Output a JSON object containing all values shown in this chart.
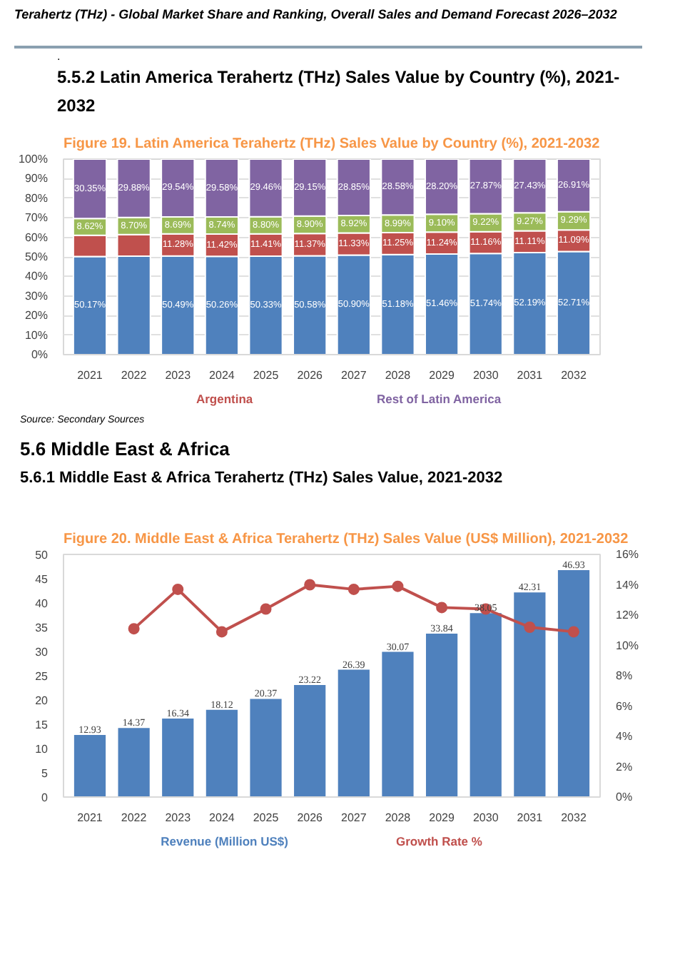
{
  "chart_data": [
    {
      "type": "bar",
      "stacked": true,
      "title": "Figure 19.   Latin America Terahertz (THz) Sales Value by Country (%), 2021-2032",
      "annotations": [
        "Terahertz (THz) - Global Market Share and Ranking, Overall Sales and Demand Forecast 2026–2032",
        ".",
        "5.5.2  Latin America Terahertz (THz) Sales Value by Country (%), 2021-2032",
        "Source: Secondary Sources"
      ],
      "categories": [
        "2021",
        "2022",
        "2023",
        "2024",
        "2025",
        "2026",
        "2027",
        "2028",
        "2029",
        "2030",
        "2031",
        "2032"
      ],
      "ylim": [
        0,
        100
      ],
      "yticks": [
        {
          "value": 0,
          "label": "0%"
        },
        {
          "value": 10,
          "label": "10%"
        },
        {
          "value": 20,
          "label": "20%"
        },
        {
          "value": 30,
          "label": "30%"
        },
        {
          "value": 40,
          "label": "40%"
        },
        {
          "value": 50,
          "label": "50%"
        },
        {
          "value": 60,
          "label": "60%"
        },
        {
          "value": 70,
          "label": "70%"
        },
        {
          "value": 80,
          "label": "80%"
        },
        {
          "value": 90,
          "label": "90%"
        },
        {
          "value": 100,
          "label": "100%"
        }
      ],
      "grid": "y",
      "legend": "bottom",
      "series": [
        {
          "color": "#4f81bd",
          "values": [
            50.17,
            50.33,
            50.49,
            50.26,
            50.33,
            50.58,
            50.9,
            51.18,
            51.46,
            51.74,
            52.19,
            52.71
          ],
          "value_labels": [
            "50.17%",
            null,
            "50.49%",
            "50.26%",
            "50.33%",
            "50.58%",
            "50.90%",
            "51.18%",
            "51.46%",
            "51.74%",
            "52.19%",
            "52.71%"
          ]
        },
        {
          "name": "Argentina",
          "color": "#c0504d",
          "values": [
            10.86,
            11.09,
            11.28,
            11.42,
            11.41,
            11.37,
            11.33,
            11.25,
            11.24,
            11.16,
            11.11,
            11.09
          ],
          "value_labels": [
            null,
            null,
            "11.28%",
            "11.42%",
            "11.41%",
            "11.37%",
            "11.33%",
            "11.25%",
            "11.24%",
            "11.16%",
            "11.11%",
            "11.09%"
          ]
        },
        {
          "color": "#9bbb59",
          "values": [
            8.62,
            8.7,
            8.69,
            8.74,
            8.8,
            8.9,
            8.92,
            8.99,
            9.1,
            9.22,
            9.27,
            9.29
          ],
          "value_labels": [
            "8.62%",
            "8.70%",
            "8.69%",
            "8.74%",
            "8.80%",
            "8.90%",
            "8.92%",
            "8.99%",
            "9.10%",
            "9.22%",
            "9.27%",
            "9.29%"
          ]
        },
        {
          "name": "Rest of Latin America",
          "color": "#8064a2",
          "values": [
            30.35,
            29.88,
            29.54,
            29.58,
            29.46,
            29.15,
            28.85,
            28.58,
            28.2,
            27.87,
            27.43,
            26.91
          ],
          "value_labels": [
            "30.35%",
            "29.88%",
            "29.54%",
            "29.58%",
            "29.46%",
            "29.15%",
            "28.85%",
            "28.58%",
            "28.20%",
            "27.87%",
            "27.43%",
            "26.91%"
          ]
        }
      ]
    },
    {
      "type": "bar",
      "title": "Figure 20.   Middle East & Africa Terahertz (THz) Sales Value (US$ Million), 2021-2032",
      "annotations": [
        "5.6  Middle East & Africa",
        "5.6.1  Middle East & Africa Terahertz (THz) Sales Value, 2021-2032"
      ],
      "categories": [
        "2021",
        "2022",
        "2023",
        "2024",
        "2025",
        "2026",
        "2027",
        "2028",
        "2029",
        "2030",
        "2031",
        "2032"
      ],
      "ylim": [
        0,
        50
      ],
      "yticks": [
        0,
        5,
        10,
        15,
        20,
        25,
        30,
        35,
        40,
        45,
        50
      ],
      "y2lim": [
        0,
        16
      ],
      "y2ticks": [
        {
          "value": 0,
          "label": "0%"
        },
        {
          "value": 2,
          "label": "2%"
        },
        {
          "value": 4,
          "label": "4%"
        },
        {
          "value": 6,
          "label": "6%"
        },
        {
          "value": 8,
          "label": "8%"
        },
        {
          "value": 10,
          "label": "10%"
        },
        {
          "value": 12,
          "label": "12%"
        },
        {
          "value": 14,
          "label": "14%"
        },
        {
          "value": 16,
          "label": "16%"
        }
      ],
      "legend": "bottom",
      "series": [
        {
          "name": "Revenue (Million US$)",
          "color": "#4f81bd",
          "values": [
            12.93,
            14.37,
            16.34,
            18.12,
            20.37,
            23.22,
            26.39,
            30.07,
            33.84,
            38.05,
            42.31,
            46.93
          ],
          "value_labels": [
            "12.93",
            "14.37",
            "16.34",
            "18.12",
            "20.37",
            "23.22",
            "26.39",
            "30.07",
            "33.84",
            "38.05",
            "42.31",
            "46.93"
          ]
        },
        {
          "name": "Growth Rate %",
          "type": "line",
          "axis": "y2",
          "marker": "circle",
          "color": "#c0504d",
          "values": [
            null,
            11.1,
            13.7,
            10.9,
            12.4,
            14.0,
            13.7,
            13.9,
            12.5,
            12.4,
            11.2,
            10.9
          ]
        }
      ]
    }
  ]
}
